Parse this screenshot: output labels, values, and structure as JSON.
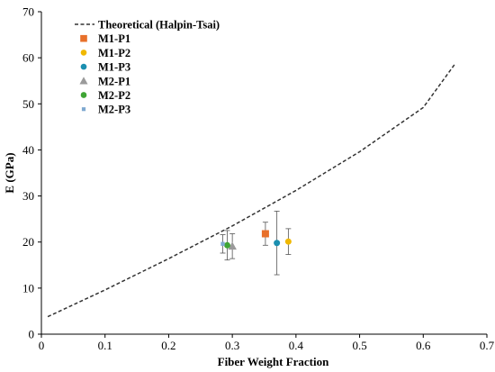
{
  "chart_data": {
    "type": "scatter",
    "xlabel": "Fiber Weight Fraction",
    "ylabel": "E (GPa)",
    "xlim": [
      0,
      0.7
    ],
    "ylim": [
      0,
      70
    ],
    "x_ticks": [
      "0",
      "0.1",
      "0.2",
      "0.3",
      "0.4",
      "0.5",
      "0.6",
      "0.7"
    ],
    "y_ticks": [
      "0",
      "10",
      "20",
      "30",
      "40",
      "50",
      "60",
      "70"
    ],
    "grid": false,
    "legend_position": "top-left",
    "series": [
      {
        "name": "Theoretical (Halpin-Tsai)",
        "kind": "line",
        "style": "dashed",
        "color": "#333333",
        "x": [
          0.01,
          0.1,
          0.2,
          0.3,
          0.4,
          0.5,
          0.6,
          0.65
        ],
        "y": [
          3.8,
          9.6,
          16.4,
          23.5,
          31.2,
          39.6,
          49.2,
          58.7
        ]
      },
      {
        "name": "M1-P1",
        "marker": "square",
        "color": "#E8702A",
        "x": [
          0.352
        ],
        "y": [
          21.8
        ],
        "error": [
          2.5
        ]
      },
      {
        "name": "M1-P2",
        "marker": "circle",
        "color": "#F0B800",
        "x": [
          0.388
        ],
        "y": [
          20.1
        ],
        "error": [
          2.8
        ]
      },
      {
        "name": "M1-P3",
        "marker": "circle",
        "color": "#1B8FB0",
        "x": [
          0.37
        ],
        "y": [
          19.8
        ],
        "error": [
          6.9
        ]
      },
      {
        "name": "M2-P1",
        "marker": "triangle",
        "color": "#9A9A9A",
        "x": [
          0.3
        ],
        "y": [
          19.1
        ],
        "error": [
          2.7
        ]
      },
      {
        "name": "M2-P2",
        "marker": "circle",
        "color": "#3FA535",
        "x": [
          0.292
        ],
        "y": [
          19.3
        ],
        "error": [
          3.2
        ]
      },
      {
        "name": "M2-P3",
        "marker": "small-square",
        "color": "#7FA9D0",
        "x": [
          0.285
        ],
        "y": [
          19.6
        ],
        "error": [
          2.0
        ]
      }
    ]
  }
}
